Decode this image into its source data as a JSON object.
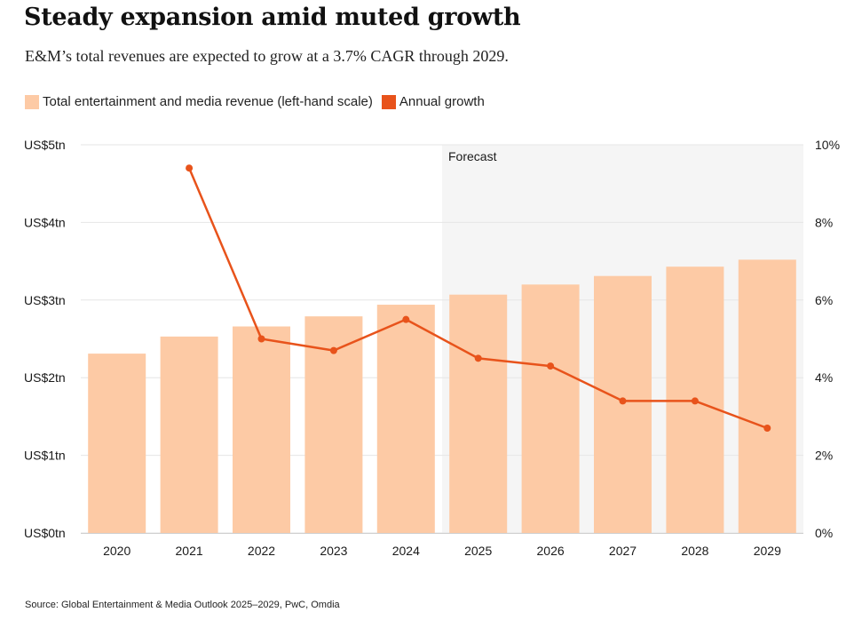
{
  "title": "Steady expansion amid muted growth",
  "subtitle": "E&M’s total revenues are expected to grow at a 3.7% CAGR through 2029.",
  "legend": {
    "bars_label": "Total entertainment and media revenue (left-hand scale)",
    "line_label": "Annual growth"
  },
  "source": "Source: Global Entertainment & Media Outlook 2025–2029, PwC, Omdia",
  "colors": {
    "bar": "#fdcaa5",
    "line": "#e8531b",
    "forecast_bg": "#f5f5f5",
    "grid": "#e6e6e6"
  },
  "chart_data": {
    "type": "bar+line",
    "categories": [
      "2020",
      "2021",
      "2022",
      "2023",
      "2024",
      "2025",
      "2026",
      "2027",
      "2028",
      "2029"
    ],
    "series": [
      {
        "name": "Total entertainment and media revenue (left-hand scale)",
        "type": "bar",
        "axis": "left",
        "unit": "US$tn",
        "values": [
          2.31,
          2.53,
          2.66,
          2.79,
          2.94,
          3.07,
          3.2,
          3.31,
          3.43,
          3.52
        ]
      },
      {
        "name": "Annual growth",
        "type": "line",
        "axis": "right",
        "unit": "%",
        "values": [
          null,
          9.4,
          5.0,
          4.7,
          5.5,
          4.5,
          4.3,
          3.4,
          3.4,
          2.7
        ]
      }
    ],
    "left_axis": {
      "ylim": [
        0,
        5
      ],
      "ticks": [
        0,
        1,
        2,
        3,
        4,
        5
      ],
      "tick_labels": [
        "US$0tn",
        "US$1tn",
        "US$2tn",
        "US$3tn",
        "US$4tn",
        "US$5tn"
      ]
    },
    "right_axis": {
      "ylim": [
        0,
        10
      ],
      "ticks": [
        0,
        2,
        4,
        6,
        8,
        10
      ],
      "tick_labels": [
        "0%",
        "2%",
        "4%",
        "6%",
        "8%",
        "10%"
      ]
    },
    "forecast": {
      "label": "Forecast",
      "start_category": "2025"
    },
    "grid": true,
    "legend_position": "top-left"
  }
}
